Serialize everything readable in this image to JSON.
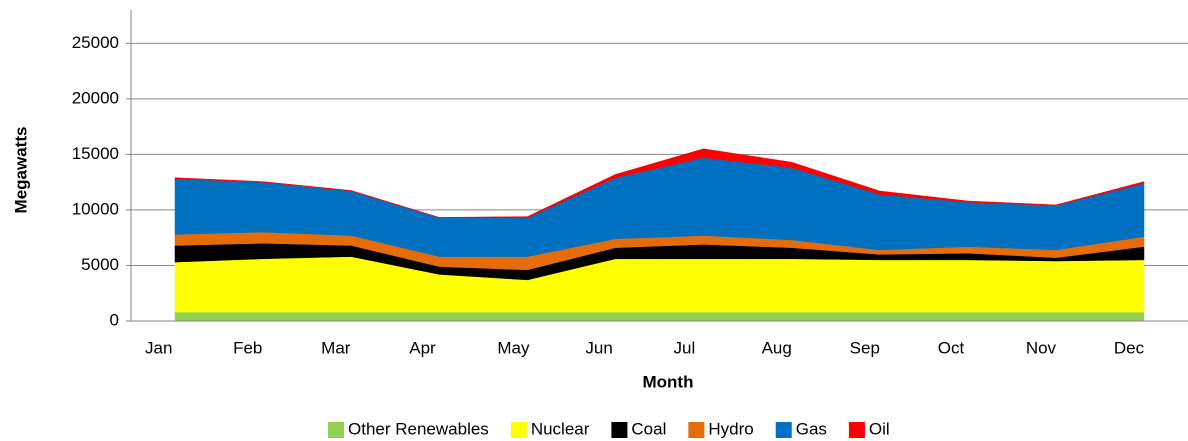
{
  "chart_data": {
    "type": "stacked-area",
    "x_label": "Month",
    "y_label": "Megawatts",
    "categories": [
      "Jan",
      "Feb",
      "Mar",
      "Apr",
      "May",
      "Jun",
      "Jul",
      "Aug",
      "Sep",
      "Oct",
      "Nov",
      "Dec"
    ],
    "series": [
      {
        "name": "Other Renewables",
        "color": "#92d050",
        "values": [
          800,
          800,
          800,
          800,
          800,
          800,
          800,
          800,
          800,
          800,
          800,
          800
        ]
      },
      {
        "name": "Nuclear",
        "color": "#ffff00",
        "values": [
          4500,
          4800,
          5000,
          3400,
          2900,
          4800,
          4800,
          4800,
          4700,
          4700,
          4600,
          4700
        ]
      },
      {
        "name": "Coal",
        "color": "#000000",
        "values": [
          1500,
          1400,
          1000,
          700,
          900,
          1000,
          1300,
          1000,
          500,
          600,
          300,
          1200
        ]
      },
      {
        "name": "Hydro",
        "color": "#e46c0a",
        "values": [
          1000,
          1000,
          900,
          900,
          1200,
          800,
          800,
          700,
          400,
          600,
          700,
          900
        ]
      },
      {
        "name": "Gas",
        "color": "#0070c0",
        "values": [
          5000,
          4500,
          4000,
          3500,
          3500,
          5500,
          7000,
          6500,
          5000,
          4000,
          4000,
          4800
        ]
      },
      {
        "name": "Oil",
        "color": "#ff0000",
        "values": [
          100,
          50,
          50,
          30,
          100,
          300,
          800,
          500,
          300,
          100,
          50,
          150
        ]
      }
    ],
    "ylim": [
      0,
      28000
    ],
    "yticks": [
      0,
      5000,
      10000,
      15000,
      20000,
      25000
    ],
    "grid": true,
    "legend": "bottom"
  }
}
